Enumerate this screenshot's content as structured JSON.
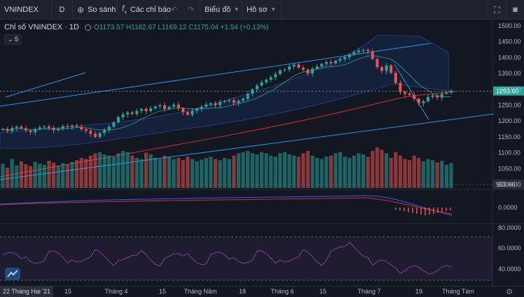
{
  "toolbar": {
    "symbol": "VNINDEX",
    "interval": "D",
    "compare_label": "So sánh",
    "indicators_label": "Các chỉ báo",
    "chart_type_label": "Biểu đồ",
    "profile_label": "Hồ sơ"
  },
  "legend": {
    "title": "Chỉ số VNINDEX · 1D",
    "open": "O1173.57",
    "high": "H1182.67",
    "low": "L1169.12",
    "close": "C1175.04",
    "change": "+1.54 (+0.13%)",
    "indicator_count": "5"
  },
  "colors": {
    "up": "#26a69a",
    "down": "#ef5350",
    "bg": "#131722",
    "channel": "#2196f3",
    "ma_red": "#d32f2f",
    "macd_line": "#2962ff",
    "rsi": "#7e3fa0"
  },
  "chart_data": {
    "type": "candlestick",
    "title": "Chỉ số VNINDEX · 1D",
    "price_axis": [
      "1500.00",
      "1450.00",
      "1400.00",
      "1350.00",
      "1300.00",
      "1250.00",
      "1200.00",
      "1150.00",
      "1100.00",
      "1050.00",
      "1000.00"
    ],
    "ylim": [
      975,
      1505
    ],
    "last_price": "1293.60",
    "volume_label": "993.66",
    "macd_axis": [
      "0.0000"
    ],
    "rsi_axis": [
      "80.0000",
      "60.0000",
      "40.0000"
    ],
    "time_labels": [
      "15",
      "Tháng 4",
      "15",
      "Tháng Năm",
      "18",
      "Tháng 6",
      "15",
      "Tháng 7",
      "19",
      "Tháng Tám"
    ],
    "start_date": "22 Tháng Hai '21",
    "closes": [
      1175,
      1168,
      1178,
      1182,
      1177,
      1170,
      1165,
      1174,
      1180,
      1183,
      1178,
      1171,
      1176,
      1184,
      1181,
      1186,
      1182,
      1174,
      1169,
      1160,
      1150,
      1162,
      1172,
      1182,
      1196,
      1212,
      1221,
      1227,
      1222,
      1232,
      1238,
      1231,
      1240,
      1246,
      1250,
      1238,
      1245,
      1252,
      1240,
      1228,
      1220,
      1232,
      1238,
      1245,
      1252,
      1256,
      1250,
      1260,
      1263,
      1266,
      1257,
      1264,
      1270,
      1286,
      1300,
      1312,
      1322,
      1330,
      1338,
      1348,
      1360,
      1362,
      1372,
      1378,
      1368,
      1362,
      1350,
      1365,
      1372,
      1380,
      1386,
      1382,
      1390,
      1395,
      1401,
      1410,
      1417,
      1422,
      1424,
      1420,
      1396,
      1370,
      1358,
      1375,
      1352,
      1320,
      1292,
      1286,
      1282,
      1270,
      1256,
      1262,
      1276,
      1281,
      1274,
      1286,
      1290,
      1294
    ],
    "volumes": [
      420,
      350,
      500,
      390,
      460,
      410,
      380,
      450,
      420,
      400,
      470,
      440,
      390,
      430,
      410,
      450,
      480,
      520,
      500,
      560,
      600,
      620,
      580,
      560,
      540,
      600,
      640,
      620,
      560,
      520,
      500,
      610,
      580,
      520,
      500,
      560,
      540,
      500,
      520,
      480,
      540,
      500,
      460,
      490,
      520,
      540,
      500,
      480,
      520,
      500,
      560,
      600,
      620,
      640,
      600,
      580,
      620,
      600,
      560,
      540,
      600,
      620,
      580,
      560,
      540,
      600,
      640,
      560,
      520,
      500,
      540,
      560,
      600,
      620,
      540,
      520,
      560,
      600,
      580,
      540,
      640,
      700,
      660,
      600,
      520,
      620,
      560,
      500,
      480,
      560,
      520,
      460,
      500,
      480,
      440,
      470,
      400,
      430
    ]
  }
}
